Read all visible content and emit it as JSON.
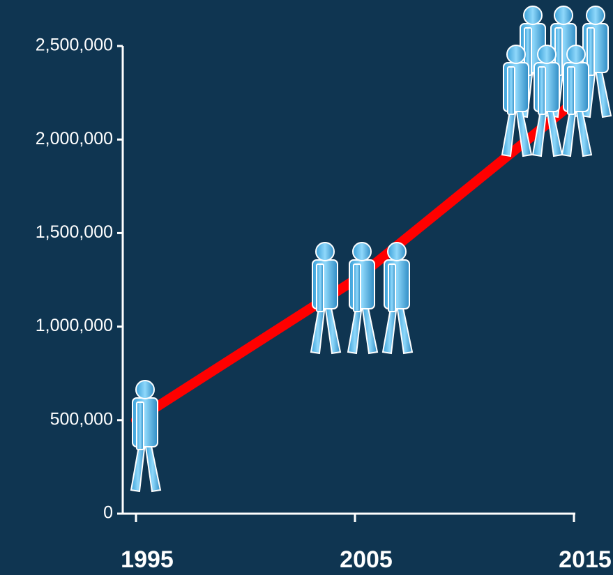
{
  "chart_data": {
    "type": "line",
    "x": [
      1995,
      2005,
      2015
    ],
    "series": [
      {
        "color": "#ff0000",
        "values": [
          500000,
          1250000,
          2200000
        ]
      }
    ],
    "xlim": [
      1995,
      2015
    ],
    "xticks": [
      1995,
      2005,
      2015
    ],
    "ylim": [
      0,
      2500000
    ],
    "yticks": [
      0,
      {
        "value": 500000,
        "label": "500,000"
      },
      {
        "value": 1000000,
        "label": "1,000,000"
      },
      {
        "value": 1500000,
        "label": "1,500,000"
      },
      {
        "value": 2000000,
        "label": "2,000,000"
      },
      {
        "value": 2500000,
        "label": "2,500,000"
      }
    ]
  }
}
